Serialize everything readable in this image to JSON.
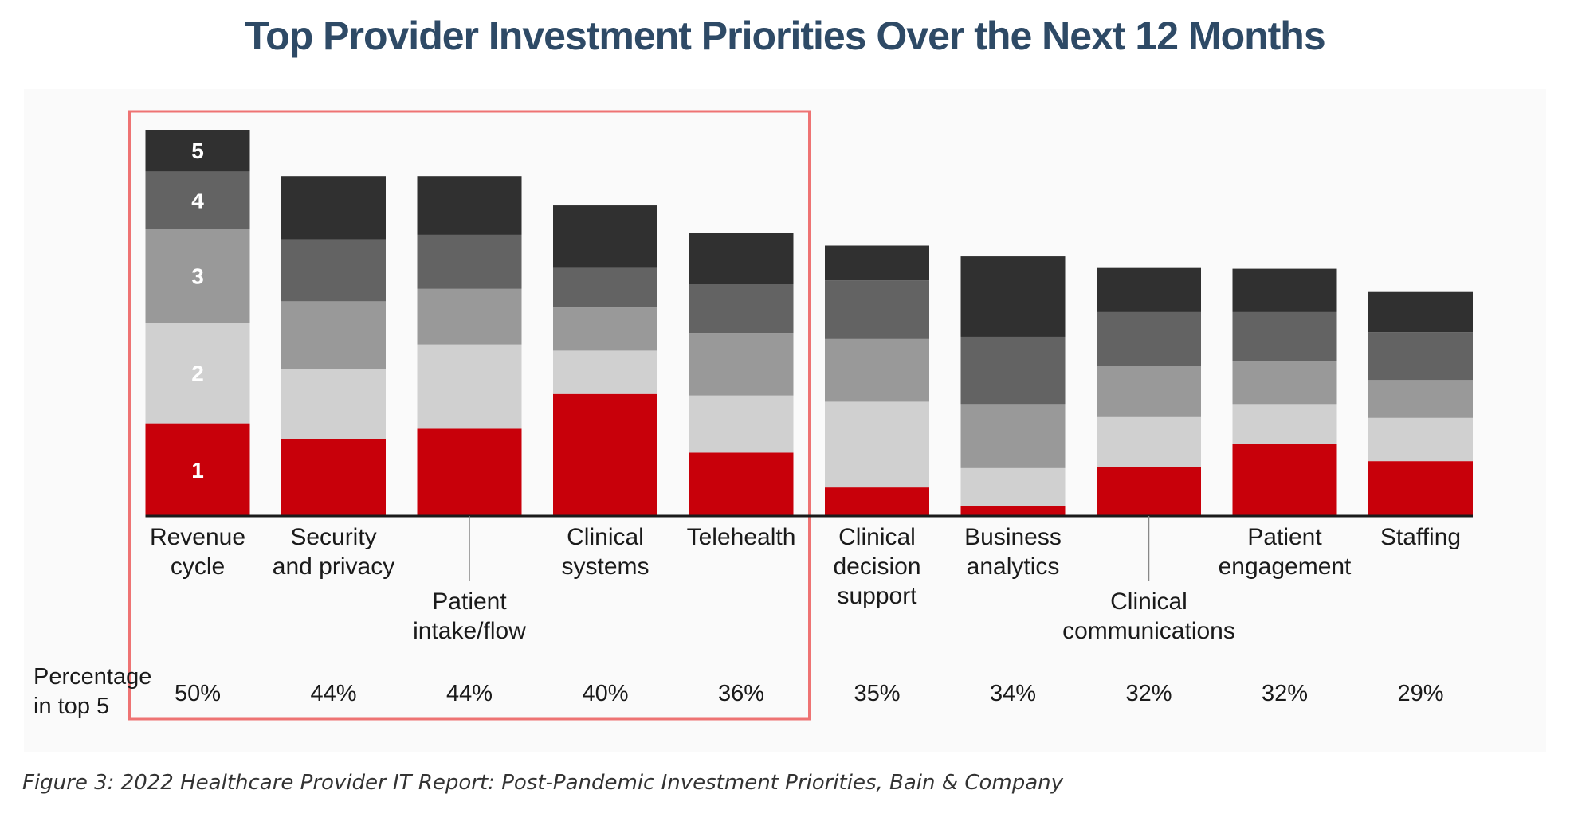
{
  "title": "Top Provider Investment Priorities Over the Next 12 Months",
  "caption": "Figure 3:  2022 Healthcare Provider IT Report: Post-Pandemic Investment Priorities, Bain & Company",
  "pct_header": [
    "Percentage",
    "in top 5"
  ],
  "colors": {
    "title": "#2e4a66",
    "rank1": "#c8000a",
    "rank2": "#d0d0d0",
    "rank3": "#999999",
    "rank4": "#636363",
    "rank5": "#303030",
    "highlight_box": "#ee7373",
    "baseline": "#1a1a1a"
  },
  "chart_data": {
    "type": "bar",
    "stacked": true,
    "title": "Top Provider Investment Priorities Over the Next 12 Months",
    "xlabel": "",
    "ylabel": "",
    "ylim": [
      0,
      50
    ],
    "legend": "segment labels 1-5 on first bar",
    "categories": [
      {
        "lines": [
          "Revenue",
          "cycle"
        ],
        "label_row": 0
      },
      {
        "lines": [
          "Security",
          "and privacy"
        ],
        "label_row": 0
      },
      {
        "lines": [
          "Patient",
          "intake/flow"
        ],
        "label_row": 1
      },
      {
        "lines": [
          "Clinical",
          "systems"
        ],
        "label_row": 0
      },
      {
        "lines": [
          "Telehealth"
        ],
        "label_row": 0
      },
      {
        "lines": [
          "Clinical",
          "decision",
          "support"
        ],
        "label_row": 0
      },
      {
        "lines": [
          "Business",
          "analytics"
        ],
        "label_row": 0
      },
      {
        "lines": [
          "Clinical",
          "communications"
        ],
        "label_row": 1
      },
      {
        "lines": [
          "Patient",
          "engagement"
        ],
        "label_row": 0
      },
      {
        "lines": [
          "Staffing"
        ],
        "label_row": 0
      }
    ],
    "series": [
      {
        "name": "1",
        "values": [
          12,
          10,
          11.3,
          15.8,
          8.2,
          3.7,
          1.3,
          6.4,
          9.3,
          7.1
        ]
      },
      {
        "name": "2",
        "values": [
          13,
          9,
          10.9,
          5.6,
          7.4,
          11.1,
          4.9,
          6.4,
          5.2,
          5.6
        ]
      },
      {
        "name": "3",
        "values": [
          12.2,
          8.8,
          7.2,
          5.6,
          8.1,
          8.1,
          8.3,
          6.6,
          5.6,
          4.9
        ]
      },
      {
        "name": "4",
        "values": [
          7.4,
          8,
          7.0,
          5.2,
          6.3,
          7.6,
          8.7,
          7.0,
          6.3,
          6.2
        ]
      },
      {
        "name": "5",
        "values": [
          5.4,
          8.2,
          7.6,
          8.0,
          6.6,
          4.5,
          10.4,
          5.8,
          5.6,
          5.2
        ]
      }
    ],
    "percent_in_top5": [
      "50%",
      "44%",
      "44%",
      "40%",
      "36%",
      "35%",
      "34%",
      "32%",
      "32%",
      "29%"
    ],
    "highlighted_categories": [
      0,
      4
    ]
  }
}
